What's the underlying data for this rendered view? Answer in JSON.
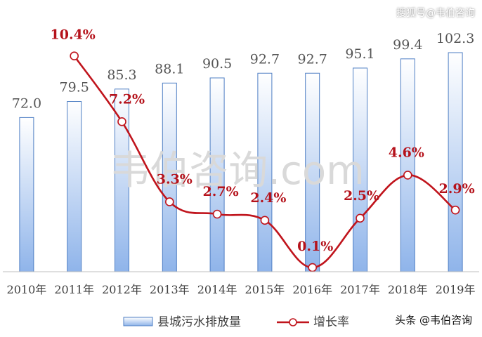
{
  "chart_data": {
    "type": "bar+line",
    "categories": [
      "2010年",
      "2011年",
      "2012年",
      "2013年",
      "2014年",
      "2015年",
      "2016年",
      "2017年",
      "2018年",
      "2019年"
    ],
    "series": [
      {
        "name": "县城污水排放量",
        "type": "bar",
        "values": [
          72.0,
          79.5,
          85.3,
          88.1,
          90.5,
          92.7,
          92.7,
          95.1,
          99.4,
          102.3
        ],
        "labels": [
          "72.0",
          "79.5",
          "85.3",
          "88.1",
          "90.5",
          "92.7",
          "92.7",
          "95.1",
          "99.4",
          "102.3"
        ],
        "axis": "left"
      },
      {
        "name": "增长率",
        "type": "line",
        "values": [
          10.4,
          7.2,
          3.3,
          2.7,
          2.4,
          0.1,
          2.5,
          4.6,
          2.9
        ],
        "x": [
          "2011年",
          "2012年",
          "2013年",
          "2014年",
          "2015年",
          "2016年",
          "2017年",
          "2018年",
          "2019年"
        ],
        "labels": [
          "10.4%",
          "7.2%",
          "3.3%",
          "2.7%",
          "2.4%",
          "0.1%",
          "2.5%",
          "4.6%",
          "2.9%"
        ],
        "axis": "right"
      }
    ],
    "ylim_bar": [
      0,
      104
    ],
    "ylim_line": [
      0,
      11.6
    ],
    "legend_position": "bottom",
    "grid": false
  },
  "watermark": "韦伯咨询.com",
  "source_mark_top": "搜狐号@韦伯咨询",
  "source_mark_bottom": "头条 @韦伯咨询",
  "colors": {
    "bar_top": "#ffffff",
    "bar_bottom": "#8fb4ea",
    "bar_stroke": "#4f7fc4",
    "line": "#c0141c",
    "line_label": "#b5121b",
    "bar_label": "#555555",
    "axis": "#bfbfbf",
    "tick": "#404040",
    "watermark": "#d9d9d9"
  }
}
